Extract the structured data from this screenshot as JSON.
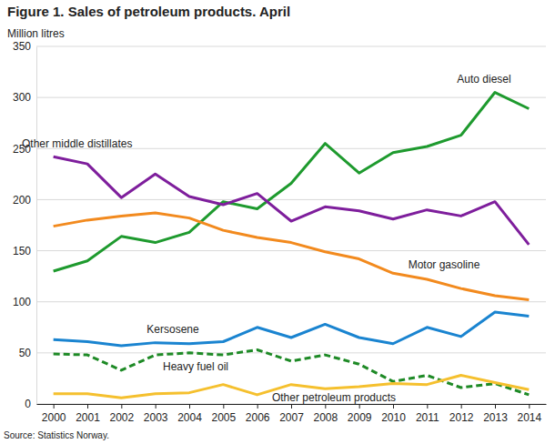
{
  "chart_data": {
    "type": "line",
    "title": "Figure 1. Sales of petroleum products. April",
    "y_label": "Million litres",
    "source": "Source: Statistics Norway.",
    "categories": [
      "2000",
      "2001",
      "2002",
      "2003",
      "2004",
      "2005",
      "2006",
      "2007",
      "2008",
      "2009",
      "2010",
      "2011",
      "2012",
      "2013",
      "2014"
    ],
    "series": [
      {
        "name": "Auto diesel",
        "color": "#1e9a2e",
        "line_style": "solid",
        "values": [
          130,
          140,
          164,
          158,
          168,
          198,
          191,
          216,
          255,
          226,
          246,
          252,
          263,
          305,
          289
        ]
      },
      {
        "name": "Other middle distillates",
        "color": "#7e1e9c",
        "line_style": "solid",
        "values": [
          242,
          235,
          202,
          225,
          203,
          195,
          206,
          179,
          193,
          189,
          181,
          190,
          184,
          198,
          156
        ]
      },
      {
        "name": "Motor gasoline",
        "color": "#f28a1e",
        "line_style": "solid",
        "values": [
          174,
          180,
          184,
          187,
          182,
          170,
          163,
          158,
          149,
          142,
          128,
          122,
          113,
          106,
          102
        ]
      },
      {
        "name": "Kersosene",
        "color": "#1a84d0",
        "line_style": "solid",
        "values": [
          63,
          61,
          57,
          60,
          59,
          61,
          75,
          65,
          78,
          65,
          59,
          75,
          66,
          90,
          86
        ]
      },
      {
        "name": "Heavy fuel oil",
        "color": "#1e8a26",
        "line_style": "dashed",
        "values": [
          49,
          48,
          33,
          48,
          50,
          48,
          53,
          42,
          48,
          39,
          22,
          28,
          16,
          20,
          9
        ]
      },
      {
        "name": "Other petroleum products",
        "color": "#f5c02e",
        "line_style": "solid",
        "values": [
          10,
          10,
          6,
          10,
          11,
          19,
          9,
          19,
          15,
          17,
          20,
          19,
          28,
          21,
          14
        ]
      }
    ],
    "ylim": [
      0,
      350
    ],
    "yticks": [
      0,
      50,
      100,
      150,
      200,
      250,
      300,
      350
    ],
    "grid": true
  }
}
